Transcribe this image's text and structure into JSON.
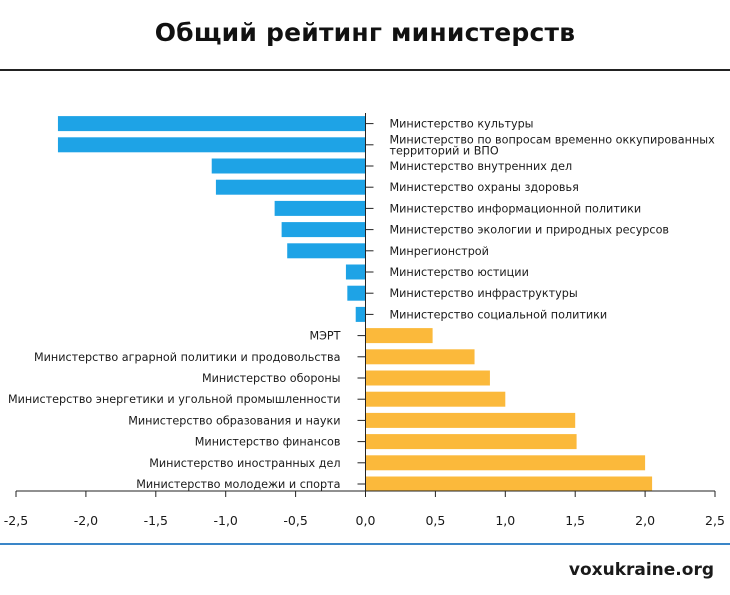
{
  "header": {
    "title": "Общий рейтинг министерств"
  },
  "footer": {
    "source": "voxukraine.org"
  },
  "colors": {
    "negative": "#1ea3e6",
    "positive": "#fbb93b",
    "axis": "#222222"
  },
  "chart_data": {
    "type": "bar",
    "orientation": "horizontal",
    "title": "Общий рейтинг министерств",
    "xlabel": "",
    "ylabel": "",
    "xlim": [
      -2.5,
      2.5
    ],
    "xticks": [
      "-2,5",
      "-2,0",
      "-1,5",
      "-1,0",
      "-0,5",
      "0,0",
      "0,5",
      "1,0",
      "1,5",
      "2,0",
      "2,5"
    ],
    "grid": false,
    "categories": [
      "Министерство культуры",
      "Министерство по вопросам временно оккупированных территорий и ВПО",
      "Министерство внутренних дел",
      "Министерство охраны здоровья",
      "Министерство информационной политики",
      "Министерство экологии и природных ресурсов",
      "Минрегионстрой",
      "Министерство юстиции",
      "Министерство инфраструктуры",
      "Министерство социальной политики",
      "МЭРТ",
      "Министерство аграрной политики и продовольства",
      "Министерство обороны",
      "Министерство энергетики и угольной промышленности",
      "Министерство образования и науки",
      "Министерство финансов",
      "Министерство иностранных дел",
      "Министерство молодежи и спорта"
    ],
    "label_lines": [
      [
        "Министерство культуры"
      ],
      [
        "Министерство по вопросам временно оккупированных",
        "территорий и ВПО"
      ],
      [
        "Министерство внутренних дел"
      ],
      [
        "Министерство охраны здоровья"
      ],
      [
        "Министерство информационной политики"
      ],
      [
        "Министерство экологии и природных ресурсов"
      ],
      [
        "Минрегионстрой"
      ],
      [
        "Министерство юстиции"
      ],
      [
        "Министерство инфраструктуры"
      ],
      [
        "Министерство социальной политики"
      ],
      [
        "МЭРТ"
      ],
      [
        "Министерство аграрной политики и продовольства"
      ],
      [
        "Министерство обороны"
      ],
      [
        "Министерство энергетики и угольной промышленности"
      ],
      [
        "Министерство образования и науки"
      ],
      [
        "Министерство финансов"
      ],
      [
        "Министерство иностранных дел"
      ],
      [
        "Министерство молодежи и спорта"
      ]
    ],
    "values": [
      -2.2,
      -2.2,
      -1.1,
      -1.07,
      -0.65,
      -0.6,
      -0.56,
      -0.14,
      -0.13,
      -0.07,
      0.48,
      0.78,
      0.89,
      1.0,
      1.5,
      1.51,
      2.0,
      2.05
    ]
  }
}
